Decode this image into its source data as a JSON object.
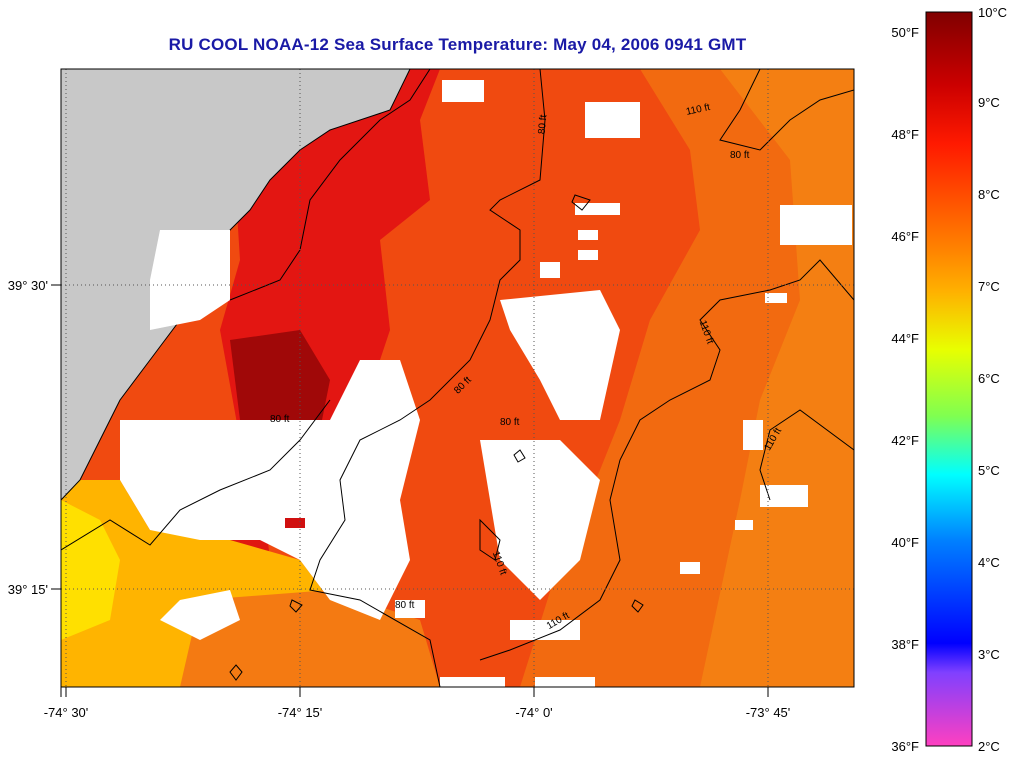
{
  "title": "RU COOL  NOAA-12  Sea Surface Temperature:  May 04, 2006 0941 GMT",
  "axes": {
    "x_ticks": [
      "-74° 30'",
      "-74° 15'",
      "-74° 0'",
      "-73° 45'"
    ],
    "y_ticks": [
      "39° 30'",
      "39° 15'"
    ]
  },
  "colorbar": {
    "fahrenheit": [
      "50°F",
      "48°F",
      "46°F",
      "44°F",
      "42°F",
      "40°F",
      "38°F",
      "36°F"
    ],
    "celsius": [
      "10°C",
      "9°C",
      "8°C",
      "7°C",
      "6°C",
      "5°C",
      "4°C",
      "3°C",
      "2°C"
    ]
  },
  "contours": {
    "isobath_80": "80 ft",
    "isobath_110": "110 ft"
  },
  "colors": {
    "land": "#c8c8c8",
    "cloud": "#ffffff",
    "title": "#1a1aa6",
    "sst_dark": "#a00000",
    "sst_red": "#e81010",
    "sst_orange": "#f04a10",
    "sst_orange_light": "#f57a10",
    "sst_yellow": "#ffd400"
  }
}
